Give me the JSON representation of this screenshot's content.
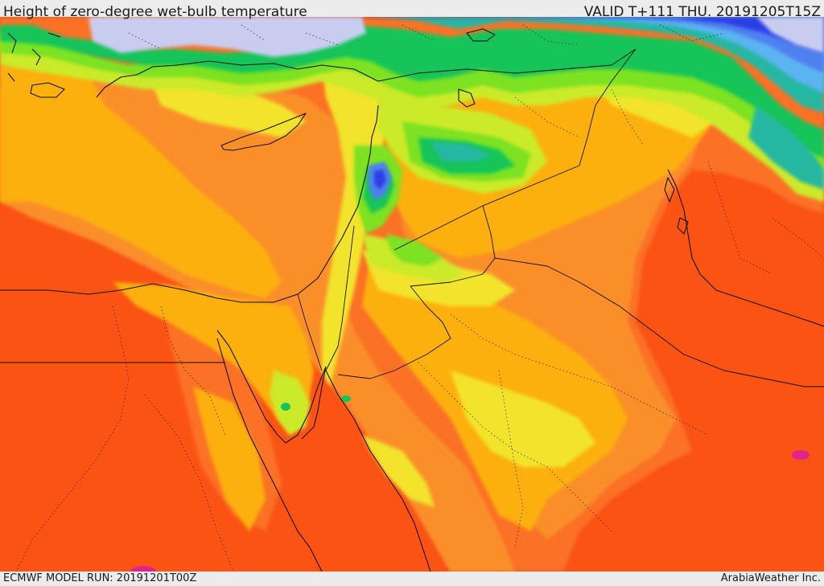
{
  "header": {
    "title": "Height of zero-degree wet-bulb temperature",
    "valid_time": "VALID T+111 THU. 20191205T15Z"
  },
  "footer": {
    "model_run": "ECMWF MODEL RUN: 20191201T00Z",
    "credit": "ArabiaWeather Inc."
  },
  "palette": {
    "sea_ice_lavender": "#c8cdf0",
    "deep_blue": "#2b40e6",
    "mid_blue": "#4f80f0",
    "light_blue": "#5ab4f0",
    "teal": "#26b7a1",
    "green": "#15c45a",
    "bright_green": "#7be223",
    "yellow_green": "#cbea2c",
    "yellow": "#f2e429",
    "gold": "#fcb00d",
    "light_orange": "#fa8f2c",
    "orange": "#fb7128",
    "red_orange": "#fa5314",
    "magenta": "#e0258a",
    "border_color": "#111111",
    "coast_color": "#111111"
  }
}
